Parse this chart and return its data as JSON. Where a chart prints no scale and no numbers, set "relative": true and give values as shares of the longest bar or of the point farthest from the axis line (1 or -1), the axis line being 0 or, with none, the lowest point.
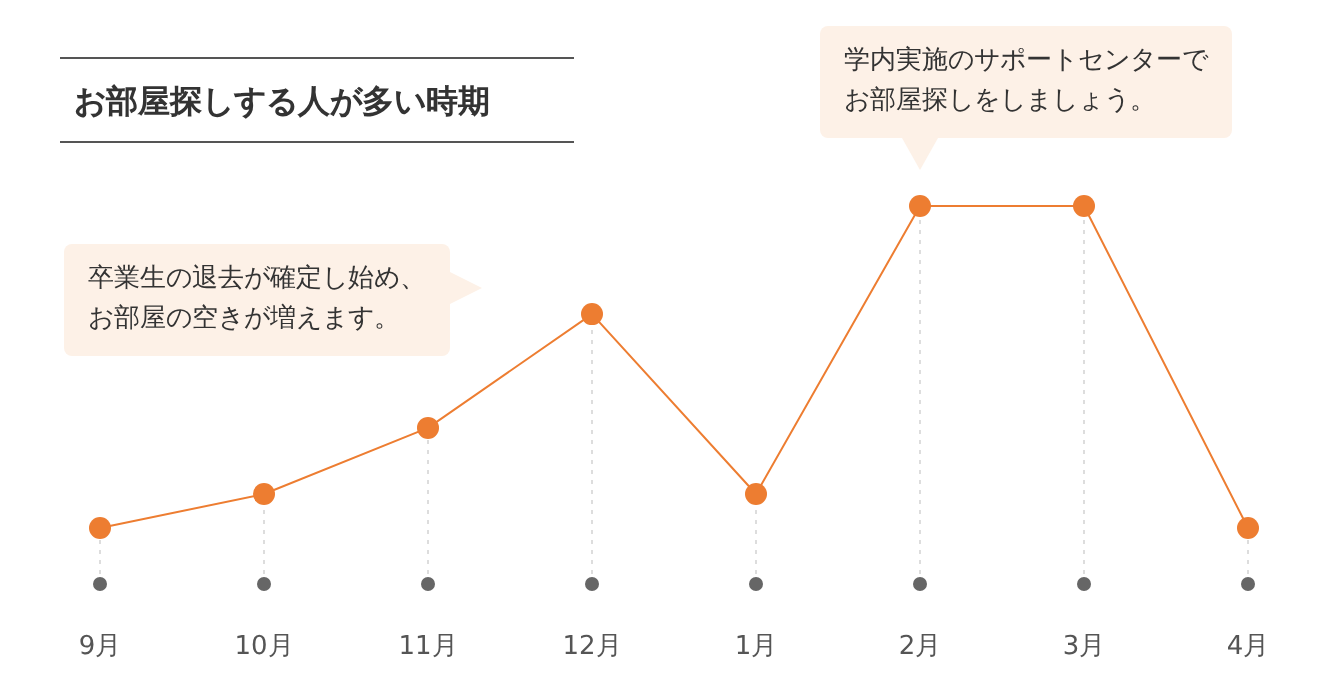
{
  "chart_data": {
    "type": "line",
    "relative": true,
    "title": "お部屋探しする人が多い時期",
    "categories": [
      "9月",
      "10月",
      "11月",
      "12月",
      "1月",
      "2月",
      "3月",
      "4月"
    ],
    "series": [
      {
        "color": "#ed7d31",
        "values": [
          0.148,
          0.238,
          0.413,
          0.714,
          0.238,
          1,
          1,
          0.148
        ]
      }
    ],
    "marker": "circle",
    "line_style": "solid",
    "grid": "x",
    "annotations": [
      "卒業生の退去が確定し始め、お部屋の空きが増えます。",
      "学内実施のサポートセンターでお部屋探しをしましょう。"
    ]
  }
}
